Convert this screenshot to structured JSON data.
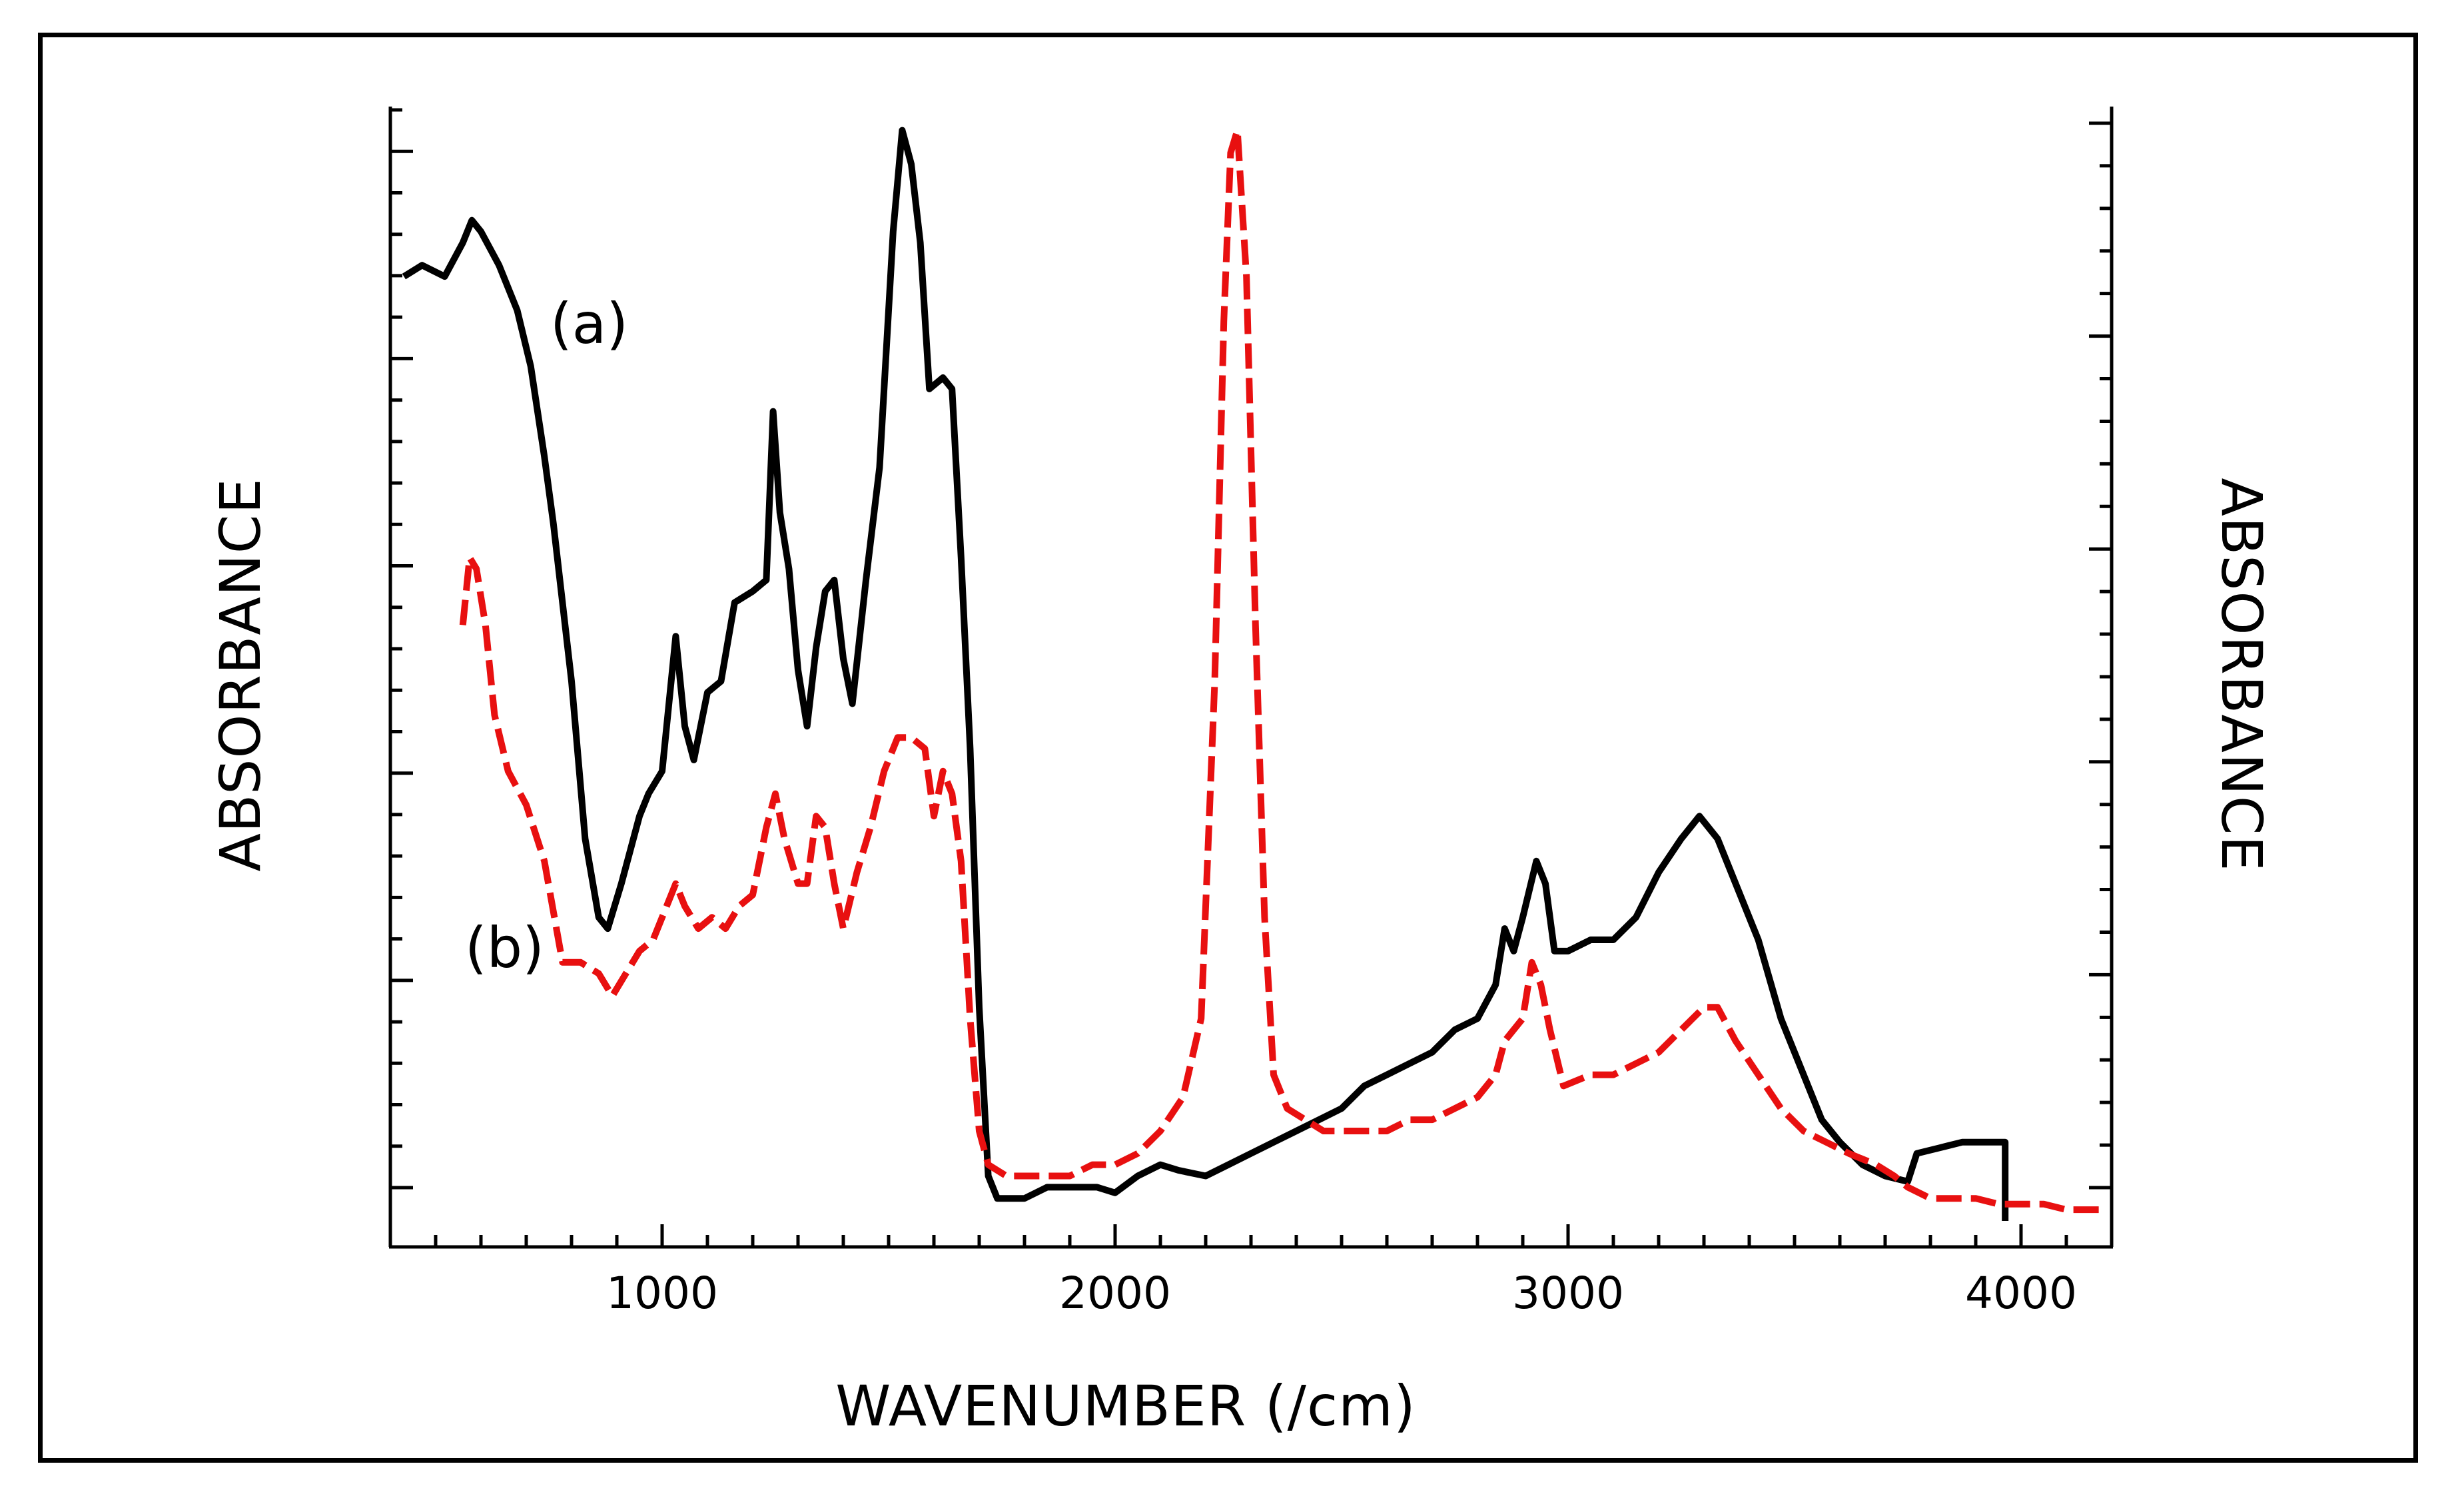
{
  "chart_data": {
    "type": "line",
    "title": "",
    "xlabel": "WAVENUMBER (/cm)",
    "ylabel": "ABSORBANCE",
    "ylabel_right": "ABSORBANCE",
    "xlim": [
      400,
      4200
    ],
    "ylim": [
      0,
      1
    ],
    "xticks": [
      1000,
      2000,
      3000,
      4000
    ],
    "xtick_labels": [
      "1000",
      "2000",
      "3000",
      "4000"
    ],
    "grid": false,
    "series": [
      {
        "name": "(a)",
        "label": "(a)",
        "color": "#000000",
        "style": "solid",
        "points": [
          [
            430,
            0.84
          ],
          [
            470,
            0.85
          ],
          [
            520,
            0.84
          ],
          [
            560,
            0.87
          ],
          [
            580,
            0.89
          ],
          [
            600,
            0.88
          ],
          [
            640,
            0.85
          ],
          [
            680,
            0.81
          ],
          [
            710,
            0.76
          ],
          [
            740,
            0.68
          ],
          [
            760,
            0.62
          ],
          [
            780,
            0.55
          ],
          [
            800,
            0.48
          ],
          [
            830,
            0.34
          ],
          [
            860,
            0.27
          ],
          [
            880,
            0.26
          ],
          [
            910,
            0.3
          ],
          [
            950,
            0.36
          ],
          [
            970,
            0.38
          ],
          [
            1000,
            0.4
          ],
          [
            1030,
            0.52
          ],
          [
            1050,
            0.44
          ],
          [
            1070,
            0.41
          ],
          [
            1100,
            0.47
          ],
          [
            1130,
            0.48
          ],
          [
            1160,
            0.55
          ],
          [
            1200,
            0.56
          ],
          [
            1230,
            0.57
          ],
          [
            1245,
            0.72
          ],
          [
            1260,
            0.63
          ],
          [
            1280,
            0.58
          ],
          [
            1300,
            0.49
          ],
          [
            1320,
            0.44
          ],
          [
            1340,
            0.51
          ],
          [
            1360,
            0.56
          ],
          [
            1380,
            0.57
          ],
          [
            1400,
            0.5
          ],
          [
            1420,
            0.46
          ],
          [
            1450,
            0.57
          ],
          [
            1480,
            0.67
          ],
          [
            1510,
            0.88
          ],
          [
            1530,
            0.97
          ],
          [
            1550,
            0.94
          ],
          [
            1570,
            0.87
          ],
          [
            1590,
            0.74
          ],
          [
            1620,
            0.75
          ],
          [
            1640,
            0.74
          ],
          [
            1660,
            0.59
          ],
          [
            1680,
            0.42
          ],
          [
            1700,
            0.19
          ],
          [
            1720,
            0.04
          ],
          [
            1740,
            0.02
          ],
          [
            1760,
            0.02
          ],
          [
            1800,
            0.02
          ],
          [
            1850,
            0.03
          ],
          [
            1900,
            0.03
          ],
          [
            1960,
            0.03
          ],
          [
            2000,
            0.025
          ],
          [
            2050,
            0.04
          ],
          [
            2100,
            0.05
          ],
          [
            2140,
            0.045
          ],
          [
            2200,
            0.04
          ],
          [
            2250,
            0.05
          ],
          [
            2300,
            0.06
          ],
          [
            2350,
            0.07
          ],
          [
            2400,
            0.08
          ],
          [
            2450,
            0.09
          ],
          [
            2500,
            0.1
          ],
          [
            2550,
            0.12
          ],
          [
            2600,
            0.13
          ],
          [
            2650,
            0.14
          ],
          [
            2700,
            0.15
          ],
          [
            2750,
            0.17
          ],
          [
            2800,
            0.18
          ],
          [
            2840,
            0.21
          ],
          [
            2860,
            0.26
          ],
          [
            2880,
            0.24
          ],
          [
            2900,
            0.27
          ],
          [
            2930,
            0.32
          ],
          [
            2950,
            0.3
          ],
          [
            2970,
            0.24
          ],
          [
            3000,
            0.24
          ],
          [
            3050,
            0.25
          ],
          [
            3100,
            0.25
          ],
          [
            3150,
            0.27
          ],
          [
            3200,
            0.31
          ],
          [
            3250,
            0.34
          ],
          [
            3290,
            0.36
          ],
          [
            3330,
            0.34
          ],
          [
            3370,
            0.3
          ],
          [
            3420,
            0.25
          ],
          [
            3470,
            0.18
          ],
          [
            3520,
            0.13
          ],
          [
            3560,
            0.09
          ],
          [
            3600,
            0.07
          ],
          [
            3650,
            0.05
          ],
          [
            3700,
            0.04
          ],
          [
            3750,
            0.035
          ],
          [
            3770,
            0.06
          ],
          [
            3820,
            0.065
          ],
          [
            3870,
            0.07
          ],
          [
            3920,
            0.07
          ],
          [
            3965,
            0.07
          ],
          [
            3965,
            0.0
          ]
        ]
      },
      {
        "name": "(b)",
        "label": "(b)",
        "color": "#e81010",
        "style": "dashed",
        "points": [
          [
            560,
            0.53
          ],
          [
            575,
            0.59
          ],
          [
            590,
            0.58
          ],
          [
            610,
            0.53
          ],
          [
            630,
            0.45
          ],
          [
            660,
            0.4
          ],
          [
            700,
            0.37
          ],
          [
            740,
            0.32
          ],
          [
            780,
            0.23
          ],
          [
            820,
            0.23
          ],
          [
            860,
            0.22
          ],
          [
            890,
            0.2
          ],
          [
            920,
            0.22
          ],
          [
            950,
            0.24
          ],
          [
            980,
            0.25
          ],
          [
            1010,
            0.28
          ],
          [
            1030,
            0.3
          ],
          [
            1050,
            0.28
          ],
          [
            1080,
            0.26
          ],
          [
            1110,
            0.27
          ],
          [
            1140,
            0.26
          ],
          [
            1170,
            0.28
          ],
          [
            1200,
            0.29
          ],
          [
            1230,
            0.35
          ],
          [
            1250,
            0.38
          ],
          [
            1270,
            0.34
          ],
          [
            1300,
            0.3
          ],
          [
            1320,
            0.3
          ],
          [
            1340,
            0.36
          ],
          [
            1360,
            0.35
          ],
          [
            1380,
            0.3
          ],
          [
            1400,
            0.26
          ],
          [
            1430,
            0.31
          ],
          [
            1460,
            0.35
          ],
          [
            1490,
            0.4
          ],
          [
            1520,
            0.43
          ],
          [
            1550,
            0.43
          ],
          [
            1580,
            0.42
          ],
          [
            1600,
            0.36
          ],
          [
            1620,
            0.4
          ],
          [
            1640,
            0.38
          ],
          [
            1660,
            0.32
          ],
          [
            1680,
            0.18
          ],
          [
            1700,
            0.08
          ],
          [
            1720,
            0.05
          ],
          [
            1760,
            0.04
          ],
          [
            1800,
            0.04
          ],
          [
            1850,
            0.04
          ],
          [
            1900,
            0.04
          ],
          [
            1950,
            0.05
          ],
          [
            2000,
            0.05
          ],
          [
            2050,
            0.06
          ],
          [
            2100,
            0.08
          ],
          [
            2150,
            0.11
          ],
          [
            2190,
            0.18
          ],
          [
            2220,
            0.48
          ],
          [
            2240,
            0.8
          ],
          [
            2255,
            0.95
          ],
          [
            2270,
            0.97
          ],
          [
            2290,
            0.84
          ],
          [
            2310,
            0.53
          ],
          [
            2330,
            0.27
          ],
          [
            2350,
            0.13
          ],
          [
            2380,
            0.1
          ],
          [
            2420,
            0.09
          ],
          [
            2460,
            0.08
          ],
          [
            2500,
            0.08
          ],
          [
            2550,
            0.08
          ],
          [
            2600,
            0.08
          ],
          [
            2650,
            0.09
          ],
          [
            2700,
            0.09
          ],
          [
            2750,
            0.1
          ],
          [
            2800,
            0.11
          ],
          [
            2840,
            0.13
          ],
          [
            2860,
            0.16
          ],
          [
            2880,
            0.17
          ],
          [
            2900,
            0.18
          ],
          [
            2920,
            0.23
          ],
          [
            2940,
            0.21
          ],
          [
            2960,
            0.17
          ],
          [
            2990,
            0.12
          ],
          [
            3050,
            0.13
          ],
          [
            3100,
            0.13
          ],
          [
            3150,
            0.14
          ],
          [
            3200,
            0.15
          ],
          [
            3250,
            0.17
          ],
          [
            3300,
            0.19
          ],
          [
            3330,
            0.19
          ],
          [
            3370,
            0.16
          ],
          [
            3420,
            0.13
          ],
          [
            3470,
            0.1
          ],
          [
            3520,
            0.08
          ],
          [
            3570,
            0.07
          ],
          [
            3620,
            0.06
          ],
          [
            3680,
            0.05
          ],
          [
            3720,
            0.04
          ],
          [
            3750,
            0.03
          ],
          [
            3800,
            0.02
          ],
          [
            3850,
            0.02
          ],
          [
            3900,
            0.02
          ],
          [
            3950,
            0.015
          ],
          [
            4000,
            0.015
          ],
          [
            4050,
            0.015
          ],
          [
            4100,
            0.01
          ],
          [
            4150,
            0.01
          ],
          [
            4180,
            0.01
          ]
        ]
      }
    ]
  },
  "colors": {
    "series_a": "#000000",
    "series_b": "#e81010",
    "axis": "#000000",
    "background": "#ffffff"
  }
}
